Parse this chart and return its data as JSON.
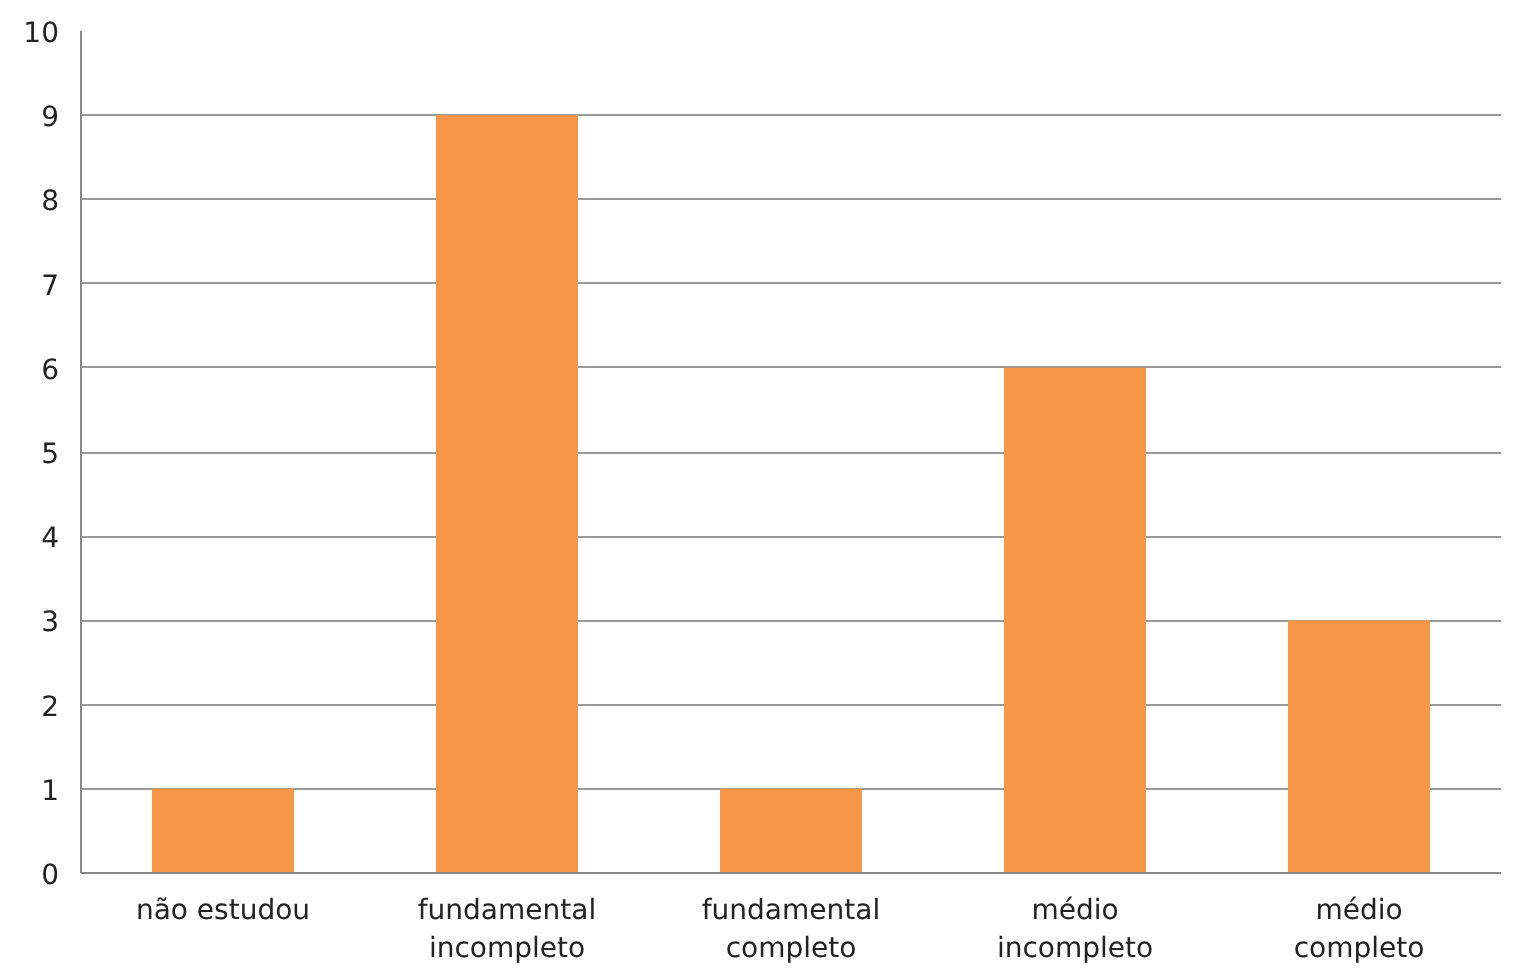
{
  "chart_data": {
    "type": "bar",
    "categories": [
      "não estudou",
      "fundamental\nincompleto",
      "fundamental\ncompleto",
      "médio\nincompleto",
      "médio\ncompleto"
    ],
    "values": [
      1,
      9,
      1,
      6,
      3
    ],
    "color": "#f79646",
    "ylim": [
      0,
      10
    ],
    "yticks": [
      0,
      1,
      2,
      3,
      4,
      5,
      6,
      7,
      8,
      9,
      10
    ],
    "grid": "y"
  }
}
